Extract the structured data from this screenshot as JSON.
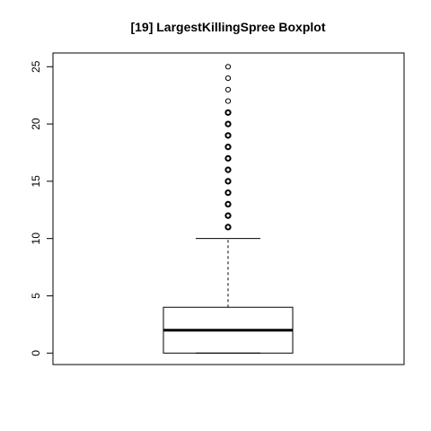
{
  "chart_data": {
    "type": "boxplot",
    "title": "[19] LargestKillingSpree Boxplot",
    "xlabel": "",
    "ylabel": "",
    "ylim": [
      -1,
      26.2
    ],
    "y_ticks": [
      0,
      5,
      10,
      15,
      20,
      25
    ],
    "y_tick_labels": [
      "0",
      "5",
      "10",
      "15",
      "20",
      "25"
    ],
    "grid": false,
    "legend": "none",
    "box": {
      "lower_whisker": 0,
      "q1": 0,
      "median": 2,
      "q3": 4,
      "upper_whisker": 10
    },
    "outliers": [
      11,
      12,
      13,
      14,
      15,
      16,
      17,
      18,
      19,
      20,
      21,
      22,
      23,
      24,
      25
    ],
    "colors": {
      "line": "#000000",
      "background": "#ffffff"
    }
  }
}
